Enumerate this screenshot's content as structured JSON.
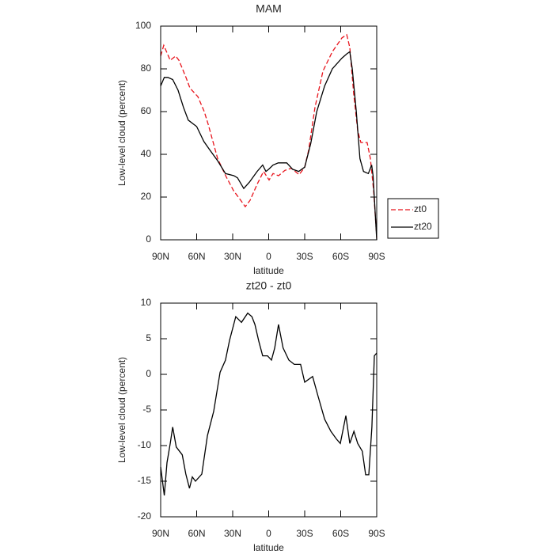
{
  "chart_data": [
    {
      "type": "line",
      "title": "MAM",
      "xlabel": "latitude",
      "ylabel": "Low-level cloud (percent)",
      "xlim": [
        90,
        -90
      ],
      "xticks": [
        {
          "value": 90,
          "label": "90N"
        },
        {
          "value": 60,
          "label": "60N"
        },
        {
          "value": 30,
          "label": "30N"
        },
        0,
        {
          "value": -30,
          "label": "30S"
        },
        {
          "value": -60,
          "label": "60S"
        },
        {
          "value": -90,
          "label": "90S"
        }
      ],
      "ylim": [
        0,
        100
      ],
      "yticks": [
        0,
        20,
        40,
        60,
        80,
        100
      ],
      "legend": "right",
      "series": [
        {
          "name": "zt0",
          "color": "#e8141c",
          "linestyle": "dashed",
          "x": [
            90,
            87.4,
            82,
            77.5,
            74.8,
            68.9,
            65.6,
            59,
            53.7,
            50.4,
            42.5,
            35.9,
            29.3,
            22.7,
            19.5,
            15.5,
            9.6,
            4.3,
            -0.3,
            -3.6,
            -8.2,
            -13.5,
            -18.8,
            -25.4,
            -30,
            -33.3,
            -38.6,
            -45.2,
            -53,
            -61,
            -65,
            -67.6,
            -70.9,
            -74.2,
            -76.8,
            -82,
            -84.7,
            -87.4,
            -90
          ],
          "values": [
            86,
            91,
            84,
            86,
            84,
            76,
            71,
            67,
            60,
            54,
            38,
            30,
            23,
            18,
            15.5,
            18.5,
            26,
            32,
            28,
            31,
            30,
            32.5,
            33.5,
            30.5,
            34,
            42,
            62,
            79,
            88,
            94.5,
            96,
            90,
            68,
            51,
            45.5,
            45.5,
            38,
            23,
            1
          ]
        },
        {
          "name": "zt20",
          "color": "#000000",
          "linestyle": "solid",
          "x": [
            90,
            87,
            84,
            80,
            75.5,
            71,
            67,
            60,
            54,
            49,
            42.5,
            36,
            29,
            26,
            20.8,
            16,
            9.6,
            5,
            2.3,
            0,
            -3.6,
            -8,
            -15,
            -20,
            -25,
            -30,
            -35,
            -40,
            -46.6,
            -53,
            -61,
            -65,
            -67.6,
            -69.6,
            -73,
            -76,
            -79,
            -83,
            -85.8,
            -87,
            -90
          ],
          "values": [
            72,
            76,
            76,
            75,
            70,
            62,
            56,
            53,
            46,
            42,
            37,
            31,
            30,
            29,
            24,
            27,
            32,
            35,
            32,
            33,
            35,
            36,
            36,
            33,
            32,
            34,
            45,
            60,
            72,
            80,
            85,
            87,
            88,
            80,
            60,
            38,
            32,
            31,
            35,
            30,
            0
          ]
        }
      ]
    },
    {
      "type": "line",
      "title": "zt20 - zt0",
      "xlabel": "latitude",
      "ylabel": "Low-level cloud (percent)",
      "xlim": [
        90,
        -90
      ],
      "xticks": [
        {
          "value": 90,
          "label": "90N"
        },
        {
          "value": 60,
          "label": "60N"
        },
        {
          "value": 30,
          "label": "30N"
        },
        0,
        {
          "value": -30,
          "label": "30S"
        },
        {
          "value": -60,
          "label": "60S"
        },
        {
          "value": -90,
          "label": "90S"
        }
      ],
      "ylim": [
        -20,
        10
      ],
      "yticks": [
        -20,
        -15,
        -10,
        -5,
        0,
        5,
        10
      ],
      "series": [
        {
          "color": "#000000",
          "linestyle": "solid",
          "x": [
            90,
            87,
            84.7,
            82,
            80,
            77,
            72,
            69,
            66,
            63.6,
            61,
            55.7,
            51,
            45.8,
            40.5,
            36,
            32.6,
            27.4,
            22.7,
            17.5,
            14,
            11.5,
            8.2,
            5,
            1,
            -2.3,
            -5,
            -8.2,
            -12,
            -16.8,
            -21.3,
            -26.6,
            -30,
            -36.6,
            -41,
            -46.6,
            -51.8,
            -56.5,
            -59.7,
            -64.3,
            -67.6,
            -71,
            -74.2,
            -78,
            -80.8,
            -83.4,
            -86,
            -88,
            -90
          ],
          "values": [
            -13,
            -17,
            -12.4,
            -9.7,
            -7.4,
            -10.2,
            -11.3,
            -14,
            -16,
            -14.4,
            -15,
            -14,
            -8.6,
            -5.2,
            0.3,
            2,
            4.8,
            8.1,
            7.3,
            8.6,
            8.1,
            7,
            4.6,
            2.6,
            2.6,
            2,
            3.7,
            7,
            3.7,
            2,
            1.4,
            1.4,
            -1.1,
            -0.3,
            -3,
            -6.3,
            -8,
            -9.1,
            -9.7,
            -5.8,
            -9.7,
            -8,
            -9.7,
            -10.8,
            -14.1,
            -14.1,
            -7.4,
            2.6,
            3
          ]
        }
      ]
    }
  ]
}
